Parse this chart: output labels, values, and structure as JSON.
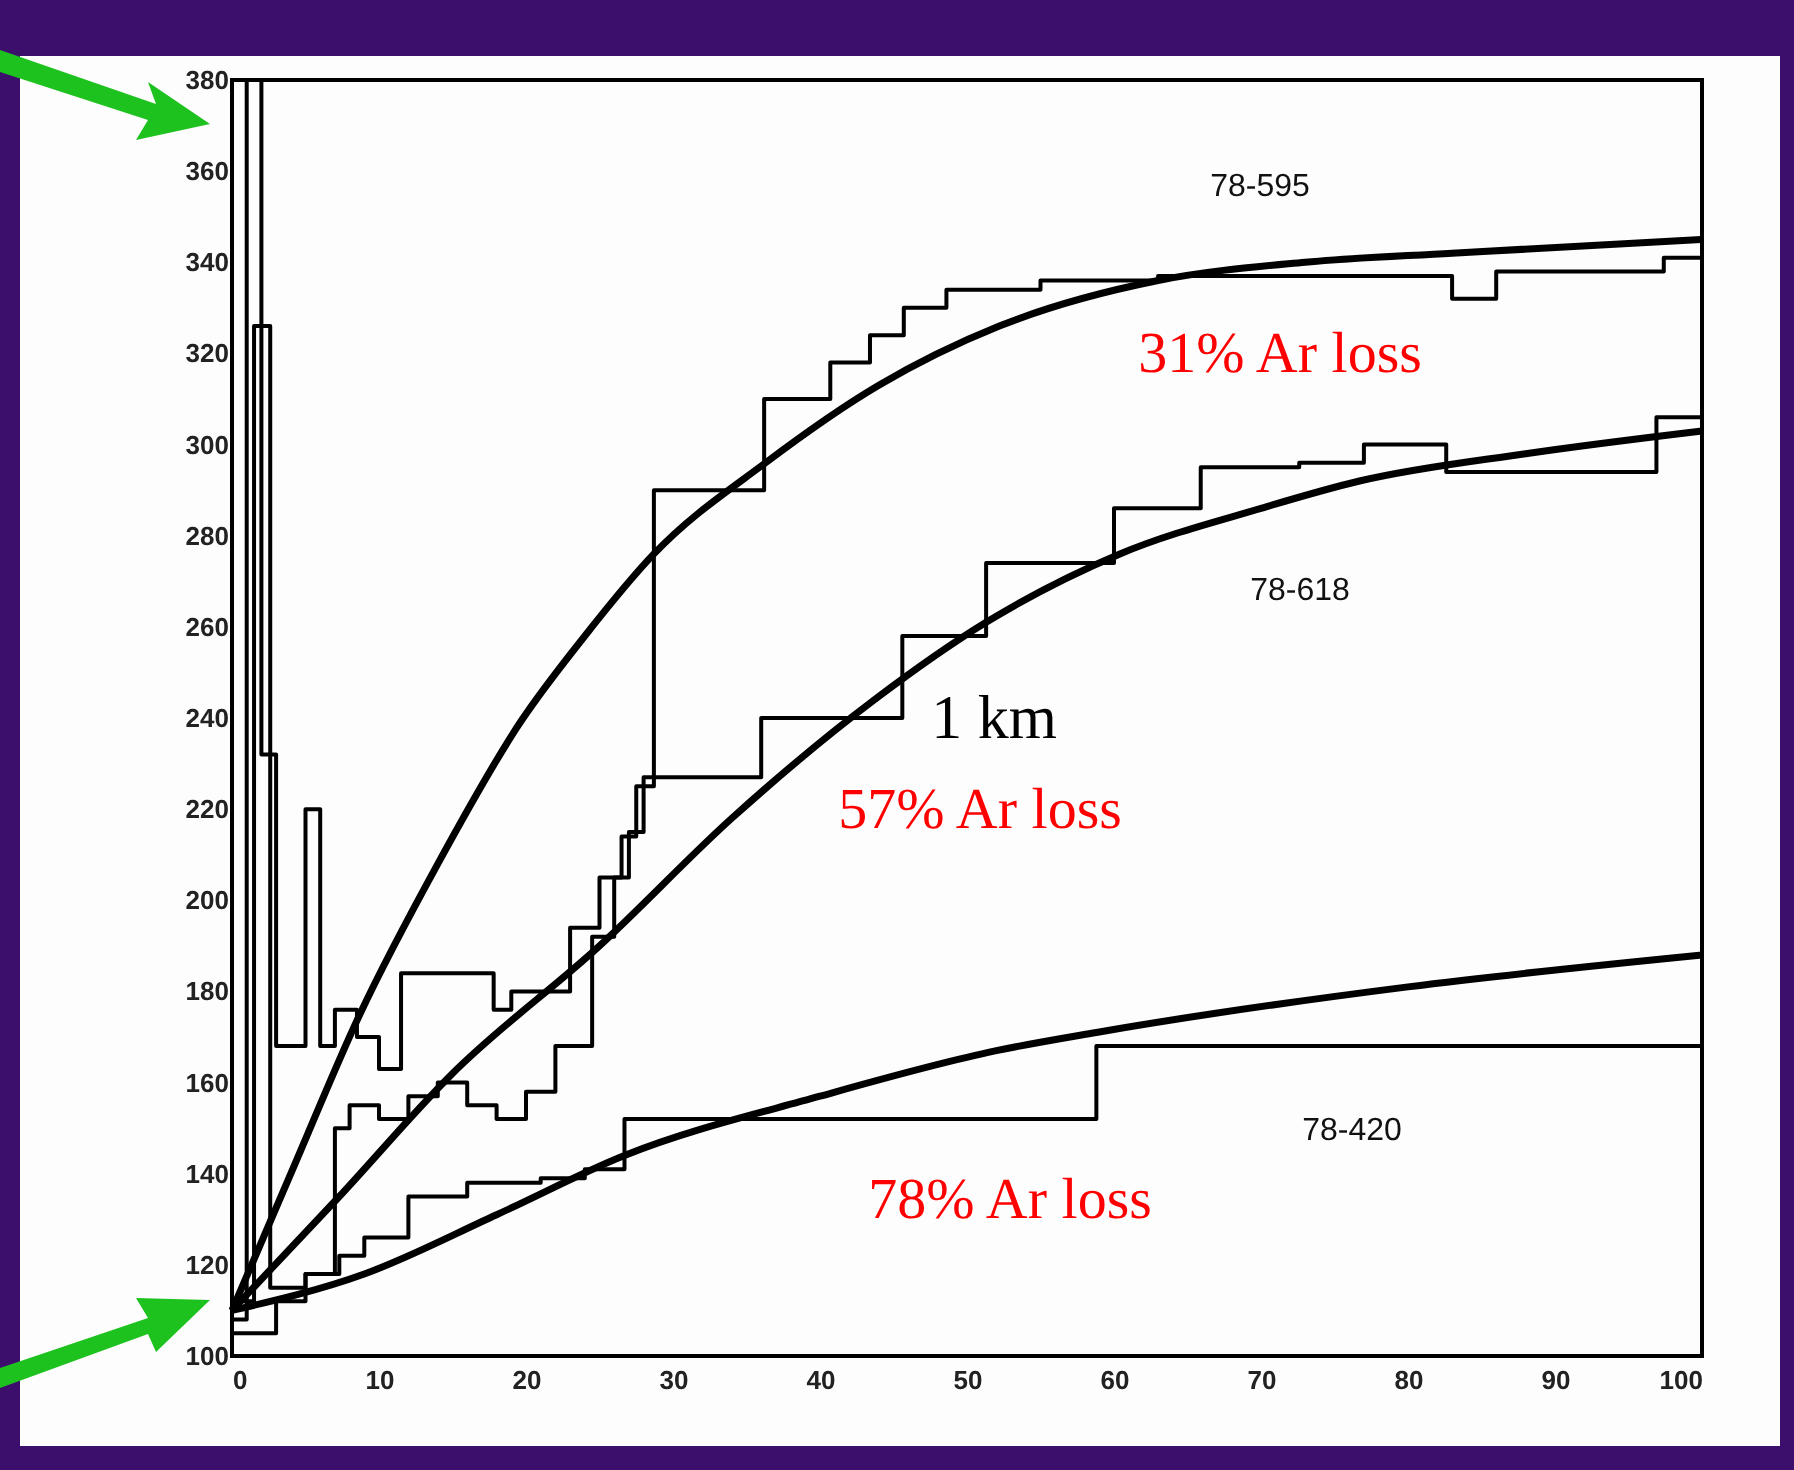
{
  "chart_data": {
    "type": "step",
    "xlim": [
      0,
      100
    ],
    "xticks": [
      0,
      10,
      20,
      30,
      40,
      50,
      60,
      70,
      80,
      90,
      100
    ],
    "ylim": [
      100,
      380
    ],
    "yticks": [
      100,
      120,
      140,
      160,
      180,
      200,
      220,
      240,
      260,
      280,
      300,
      320,
      340,
      360,
      380
    ],
    "grid": false,
    "series": [
      {
        "color": "#000000",
        "x": [
          0,
          1,
          2,
          3,
          5,
          6,
          7,
          8.5,
          10,
          11.5,
          17.8,
          19,
          21,
          23,
          25,
          26.5,
          27.5,
          28.7,
          36.2,
          40.7,
          43.4,
          45.7,
          48.6,
          55,
          63,
          83,
          86,
          91,
          97.4,
          100
        ],
        "values": [
          108,
          380,
          232,
          168,
          220,
          168,
          176,
          170,
          163,
          184,
          176,
          180,
          180,
          194,
          205,
          214,
          225,
          290,
          310,
          318,
          324,
          330,
          334,
          336,
          337,
          332,
          338,
          338,
          341,
          341
        ]
      },
      {
        "color": "#000000",
        "x": [
          0,
          1.5,
          2.6,
          5,
          7,
          8,
          10,
          12,
          14,
          16,
          18,
          20,
          22,
          24.5,
          26,
          27,
          28,
          36,
          45.6,
          51.3,
          60,
          65.9,
          72.6,
          77,
          82.6,
          90.3,
          96.9,
          100
        ],
        "values": [
          112,
          326,
          115,
          118,
          150,
          155,
          152,
          157,
          160,
          155,
          152,
          158,
          168,
          192,
          205,
          215,
          227,
          240,
          258,
          274,
          286,
          295,
          296,
          300,
          294,
          294,
          306,
          306
        ]
      },
      {
        "color": "#000000",
        "x": [
          0,
          3,
          5,
          7.3,
          9,
          12,
          16,
          21,
          24,
          26.7,
          58.8,
          100
        ],
        "values": [
          105,
          112,
          118,
          122,
          126,
          135,
          138,
          139,
          141,
          152,
          168,
          168
        ]
      },
      {
        "type": "line",
        "color": "#000000",
        "x": [
          0,
          4,
          8.7,
          14,
          19.6,
          24,
          28.7,
          36.3,
          44,
          52.2,
          63,
          73,
          83,
          100
        ],
        "values": [
          110,
          140,
          175,
          208,
          239,
          258,
          276,
          296,
          313,
          326,
          336,
          340,
          342,
          345
        ]
      },
      {
        "type": "line",
        "color": "#000000",
        "x": [
          0,
          7.3,
          15,
          25,
          34,
          43.7,
          51.3,
          60.4,
          70,
          76.7,
          88,
          100
        ],
        "values": [
          110,
          135,
          162,
          190,
          218,
          244,
          261,
          276,
          286,
          292,
          298,
          303
        ]
      },
      {
        "type": "line",
        "color": "#000000",
        "x": [
          0,
          9,
          18,
          26.7,
          40,
          52,
          58.8,
          80,
          100
        ],
        "values": [
          110,
          118,
          131,
          144,
          157,
          167,
          171,
          181,
          188
        ]
      }
    ],
    "annotations": [
      "78-595",
      "31% Ar loss",
      "78-618",
      "1 km",
      "57% Ar loss",
      "78-420",
      "78% Ar loss"
    ]
  }
}
